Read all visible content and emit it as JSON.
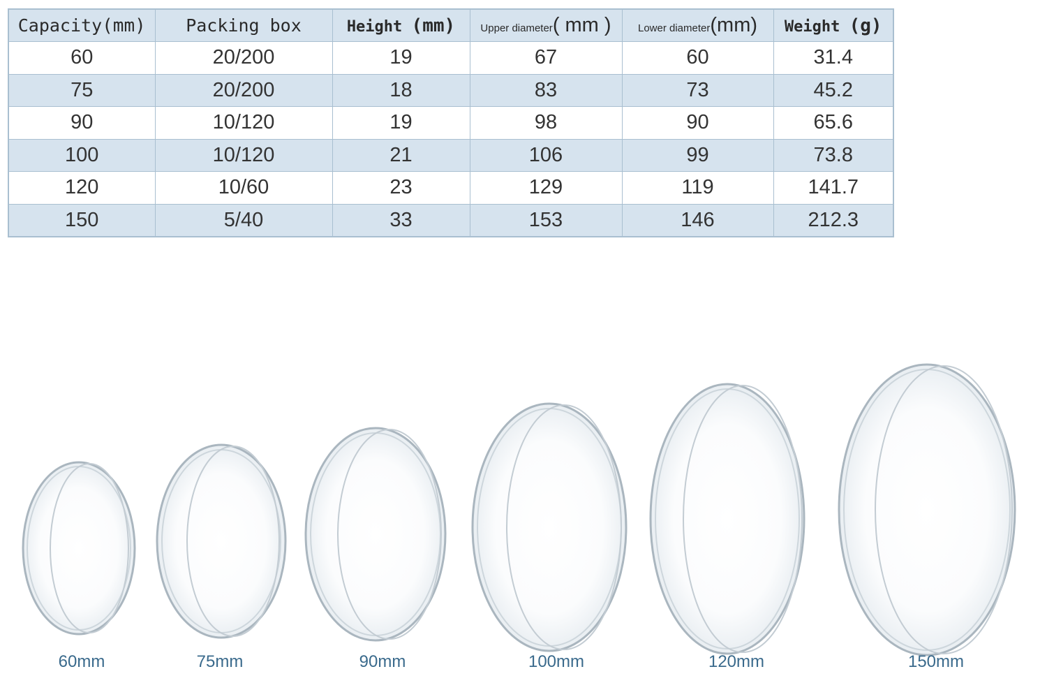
{
  "table": {
    "headers": [
      {
        "text": "Capacity",
        "unit": "(mm)"
      },
      {
        "text": "Packing box",
        "unit": ""
      },
      {
        "text": "Height",
        "unit": "(mm)"
      },
      {
        "text": "Upper diameter",
        "unit": "( mm )"
      },
      {
        "text": "Lower diameter",
        "unit": "(mm)"
      },
      {
        "text": "Weight",
        "unit": "(g)"
      }
    ],
    "rows": [
      [
        "60",
        "20/200",
        "19",
        "67",
        "60",
        "31.4"
      ],
      [
        "75",
        "20/200",
        "18",
        "83",
        "73",
        "45.2"
      ],
      [
        "90",
        "10/120",
        "19",
        "98",
        "90",
        "65.6"
      ],
      [
        "100",
        "10/120",
        "21",
        "106",
        "99",
        "73.8"
      ],
      [
        "120",
        "10/60",
        "23",
        "129",
        "119",
        "141.7"
      ],
      [
        "150",
        "5/40",
        "33",
        "153",
        "146",
        "212.3"
      ]
    ],
    "colors": {
      "header_bg": "#d6e3ee",
      "alt_row_bg": "#d6e3ee",
      "border": "#a9bfd0"
    }
  },
  "dishes": {
    "labels": [
      "60mm",
      "75mm",
      "90mm",
      "100mm",
      "120mm",
      "150mm"
    ],
    "label_color": "#3a6a8c"
  }
}
